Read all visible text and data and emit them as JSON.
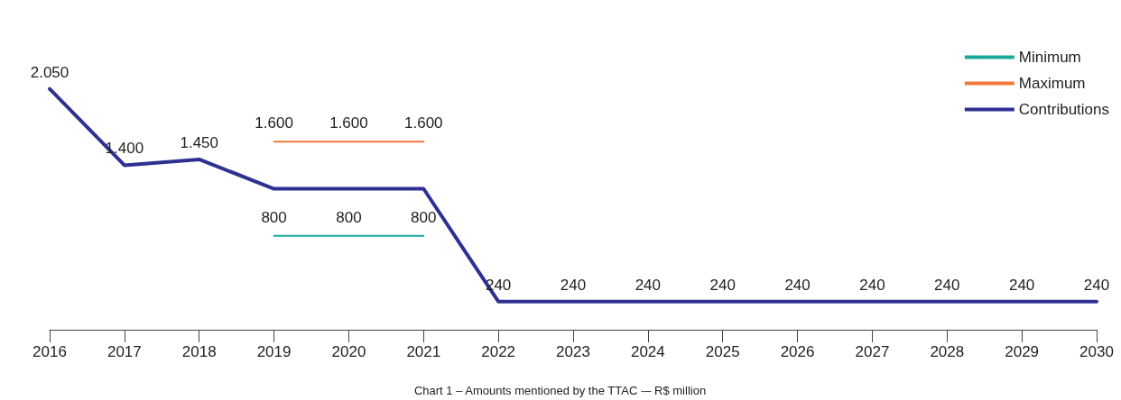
{
  "chart_data": {
    "type": "line",
    "categories": [
      "2016",
      "2017",
      "2018",
      "2019",
      "2020",
      "2021",
      "2022",
      "2023",
      "2024",
      "2025",
      "2026",
      "2027",
      "2028",
      "2029",
      "2030"
    ],
    "series": [
      {
        "name": "Minimum",
        "color": "#1aa89a",
        "values": [
          null,
          null,
          null,
          800,
          800,
          800,
          null,
          null,
          null,
          null,
          null,
          null,
          null,
          null,
          null
        ],
        "value_labels": [
          null,
          null,
          null,
          "800",
          "800",
          "800",
          null,
          null,
          null,
          null,
          null,
          null,
          null,
          null,
          null
        ]
      },
      {
        "name": "Maximum",
        "color": "#f07a3a",
        "values": [
          null,
          null,
          null,
          1600,
          1600,
          1600,
          null,
          null,
          null,
          null,
          null,
          null,
          null,
          null,
          null
        ],
        "value_labels": [
          null,
          null,
          null,
          "1.600",
          "1.600",
          "1.600",
          null,
          null,
          null,
          null,
          null,
          null,
          null,
          null,
          null
        ]
      },
      {
        "name": "Contributions",
        "color": "#2e3192",
        "values": [
          2050,
          1400,
          1450,
          1200,
          1200,
          1200,
          240,
          240,
          240,
          240,
          240,
          240,
          240,
          240,
          240
        ],
        "value_labels": [
          "2.050",
          "1.400",
          "1.450",
          null,
          null,
          null,
          "240",
          "240",
          "240",
          "240",
          "240",
          "240",
          "240",
          "240",
          "240"
        ]
      }
    ],
    "legend": "top right",
    "grid": false,
    "marker": "none",
    "line_style": "solid",
    "annotations": [
      "Chart 1 – Amounts mentioned by the TTAC -– R$ million"
    ]
  }
}
